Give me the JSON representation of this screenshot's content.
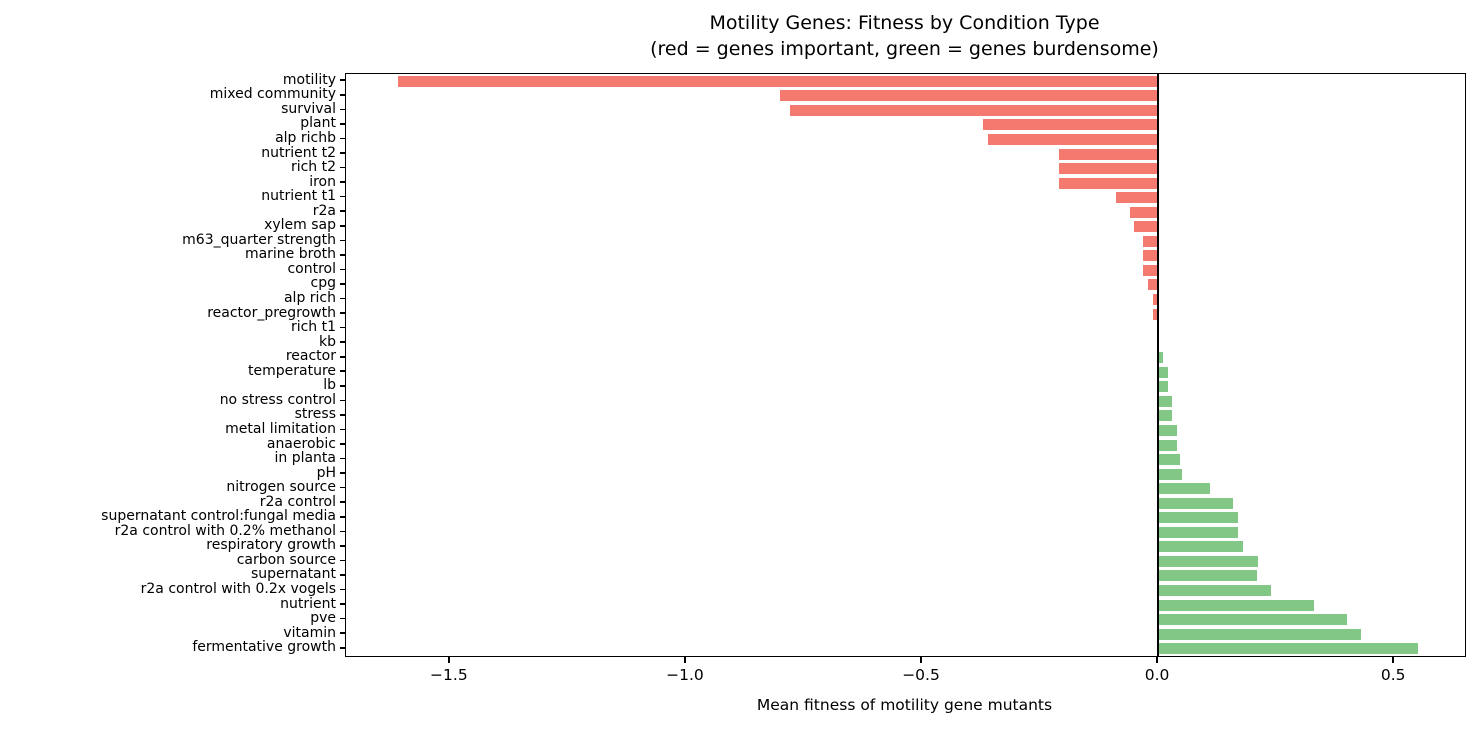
{
  "header": {
    "title": "Motility Genes: Fitness by Condition Type",
    "subtitle": "(red = genes important, green = genes burdensome)"
  },
  "chart_data": {
    "type": "bar",
    "orientation": "horizontal",
    "title": "Motility Genes: Fitness by Condition Type",
    "subtitle": "(red = genes important, green = genes burdensome)",
    "xlabel": "Mean fitness of motility gene mutants",
    "ylabel": "",
    "xlim": [
      -1.72,
      0.65
    ],
    "xticks": [
      -1.5,
      -1.0,
      -0.5,
      0.0,
      0.5
    ],
    "grid": false,
    "legend": "none",
    "zero_line": true,
    "categories": [
      "motility",
      "mixed community",
      "survival",
      "plant",
      "alp richb",
      "nutrient t2",
      "rich t2",
      "iron",
      "nutrient t1",
      "r2a",
      "xylem sap",
      "m63_quarter strength",
      "marine broth",
      "control",
      "cpg",
      "alp rich",
      "reactor_pregrowth",
      "rich t1",
      "kb",
      "reactor",
      "temperature",
      "lb",
      "no stress control",
      "stress",
      "metal limitation",
      "anaerobic",
      "in planta",
      "pH",
      "nitrogen source",
      "r2a control",
      "supernatant control:fungal media",
      "r2a control with 0.2% methanol",
      "respiratory growth",
      "carbon source",
      "supernatant",
      "r2a control with 0.2x vogels",
      "nutrient",
      "pve",
      "vitamin",
      "fermentative growth"
    ],
    "values": [
      -1.61,
      -0.8,
      -0.78,
      -0.37,
      -0.36,
      -0.21,
      -0.21,
      -0.21,
      -0.09,
      -0.06,
      -0.05,
      -0.031,
      -0.031,
      -0.031,
      -0.021,
      -0.01,
      -0.011,
      -0.002,
      0.002,
      0.01,
      0.02,
      0.02,
      0.03,
      0.03,
      0.041,
      0.041,
      0.047,
      0.05,
      0.11,
      0.158,
      0.17,
      0.169,
      0.18,
      0.211,
      0.209,
      0.24,
      0.33,
      0.4,
      0.43,
      0.551
    ],
    "colors": {
      "negative_bar": "#f4796f",
      "positive_bar": "#82c785",
      "zero_line": "#000000",
      "axis": "#000000",
      "text": "#000000"
    }
  }
}
